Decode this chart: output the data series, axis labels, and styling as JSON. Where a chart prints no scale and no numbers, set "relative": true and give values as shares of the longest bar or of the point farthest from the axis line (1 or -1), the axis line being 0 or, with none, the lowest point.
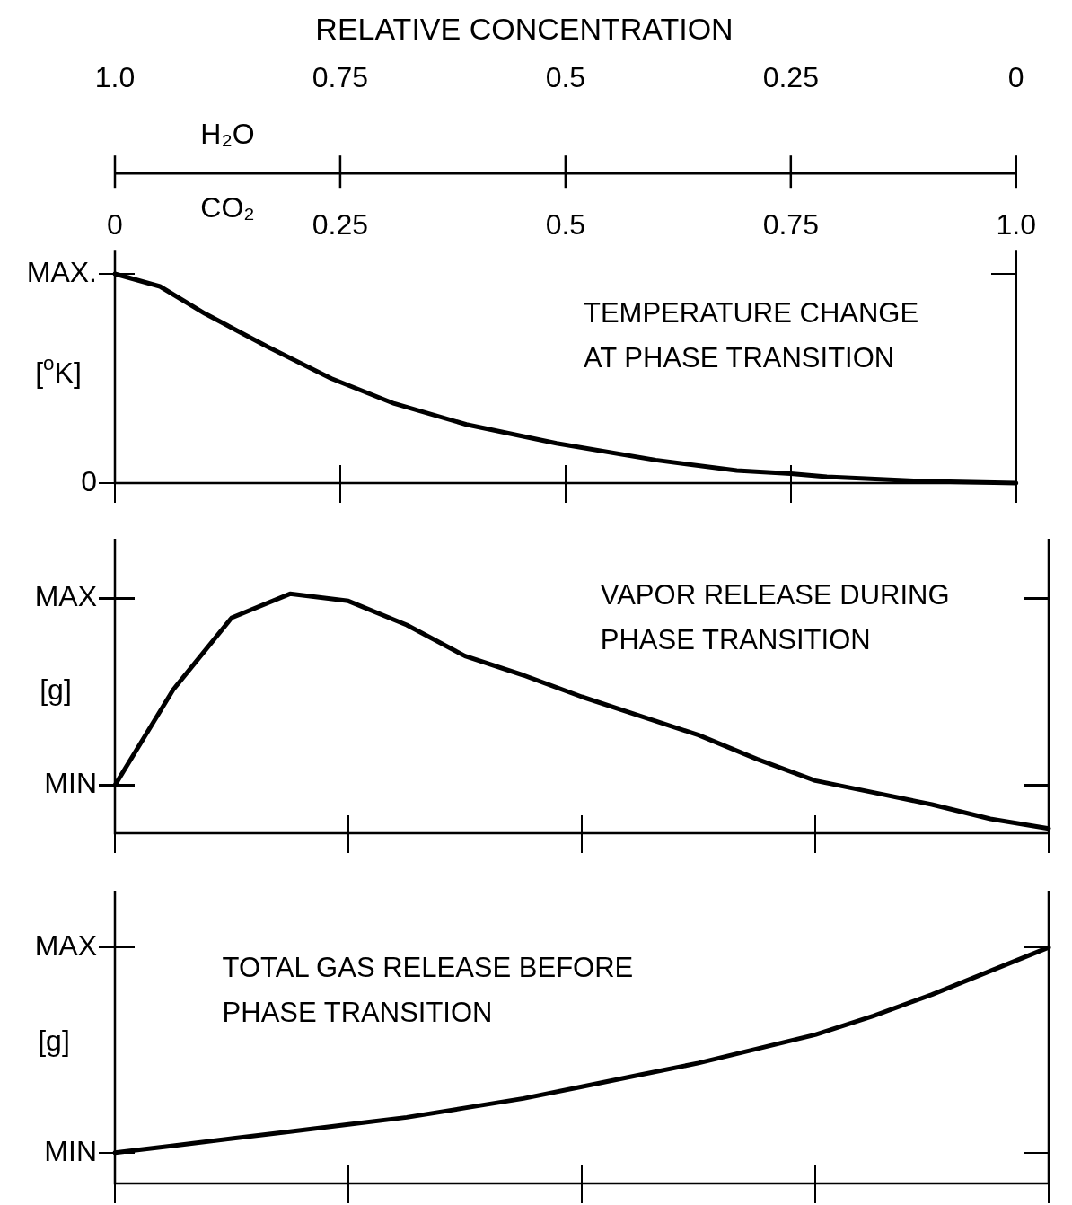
{
  "chart_data": [
    {
      "type": "line",
      "relative": true,
      "title": "RELATIVE CONCENTRATION",
      "xlabel": "CO₂",
      "x2label": "H₂O",
      "ylabel": "[$^{o}$K]",
      "color": "#000000",
      "annotations": [
        "TEMPERATURE CHANGE AT PHASE TRANSITION",
        "MAX.",
        "0"
      ],
      "x": [
        0,
        0.05,
        0.1,
        0.17,
        0.24,
        0.31,
        0.39,
        0.49,
        0.6,
        0.69,
        0.75,
        0.79,
        0.89,
        1
      ],
      "values": [
        1,
        0.94,
        0.81,
        0.65,
        0.5,
        0.38,
        0.28,
        0.19,
        0.11,
        0.06,
        0.045,
        0.03,
        0.01,
        0
      ],
      "xlim": [
        0,
        1
      ],
      "xticks": [
        0,
        0.25,
        0.5,
        0.75,
        {
          "value": 1,
          "label": "1.0"
        }
      ],
      "x2lim": [
        1,
        0
      ],
      "x2ticks": [
        {
          "value": 1,
          "label": "1.0"
        },
        0.75,
        0.5,
        0.25,
        0
      ]
    },
    {
      "type": "line",
      "relative": true,
      "ylabel": "[g]",
      "color": "#000000",
      "tick_labels": false,
      "annotations": [
        "VAPOR RELEASE DURING PHASE TRANSITION",
        "MAX",
        "MIN"
      ],
      "categories": [
        null,
        null,
        null,
        null,
        null,
        null,
        null,
        null,
        null,
        null,
        null,
        null,
        null,
        null,
        null,
        null,
        null
      ],
      "values": [
        0.2,
        0.6,
        0.9,
        1,
        0.97,
        0.87,
        0.74,
        0.66,
        0.57,
        0.49,
        0.41,
        0.31,
        0.22,
        0.17,
        0.12,
        0.06,
        0.02
      ]
    },
    {
      "type": "line",
      "relative": true,
      "ylabel": "[g]",
      "color": "#000000",
      "tick_labels": false,
      "annotations": [
        "TOTAL GAS RELEASE BEFORE PHASE TRANSITION",
        "MAX",
        "MIN"
      ],
      "categories": [
        null,
        null,
        null,
        null,
        null,
        null,
        null,
        null,
        null,
        null,
        null,
        null,
        null,
        null,
        null,
        null,
        null
      ],
      "values": [
        0.13,
        0.16,
        0.19,
        0.22,
        0.25,
        0.28,
        0.32,
        0.36,
        0.41,
        0.46,
        0.51,
        0.57,
        0.63,
        0.71,
        0.8,
        0.9,
        1
      ]
    }
  ]
}
